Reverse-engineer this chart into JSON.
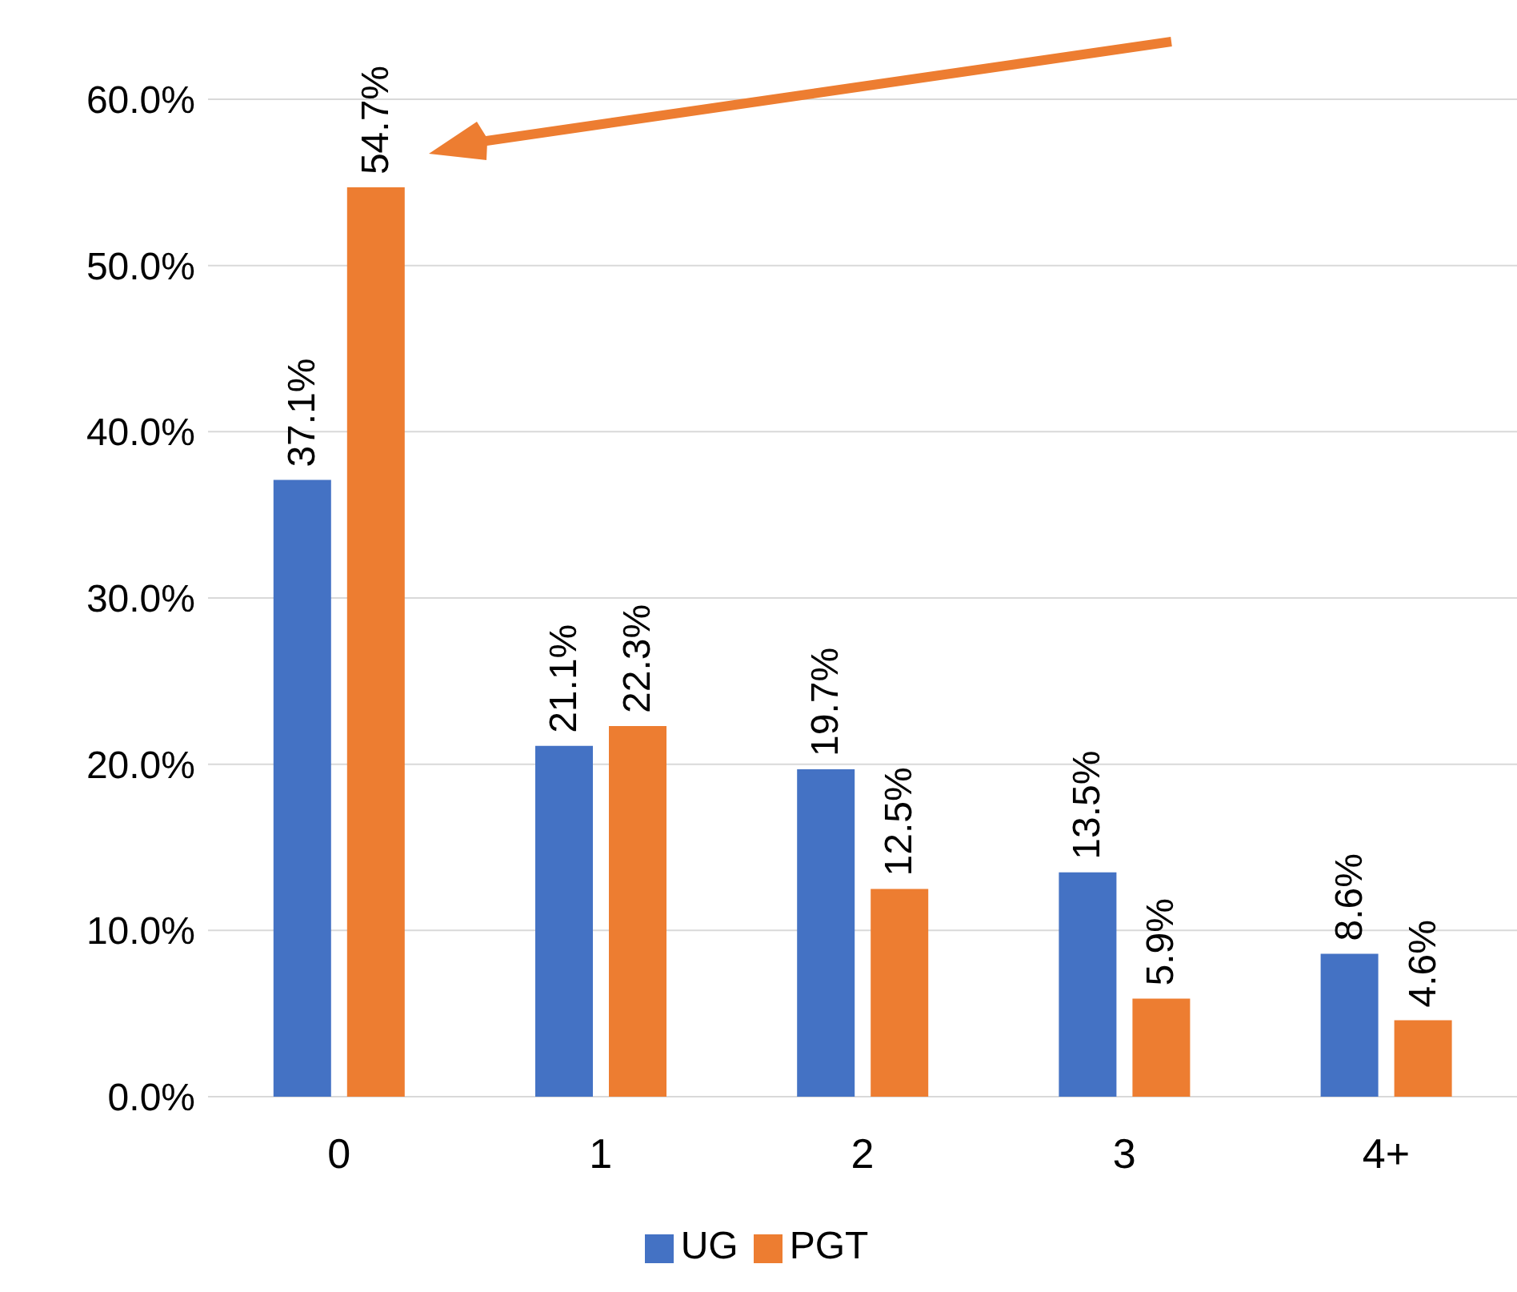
{
  "chart_data": {
    "type": "bar",
    "categories": [
      "0",
      "1",
      "2",
      "3",
      "4+"
    ],
    "series": [
      {
        "name": "UG",
        "color": "#4472c4",
        "values": [
          37.1,
          21.1,
          19.7,
          13.5,
          8.6
        ],
        "value_labels": [
          "37.1%",
          "21.1%",
          "19.7%",
          "13.5%",
          "8.6%"
        ]
      },
      {
        "name": "PGT",
        "color": "#ed7d31",
        "values": [
          54.7,
          22.3,
          12.5,
          5.9,
          4.6
        ],
        "value_labels": [
          "54.7%",
          "22.3%",
          "12.5%",
          "5.9%",
          "4.6%"
        ]
      }
    ],
    "ylim": [
      0,
      60
    ],
    "yticks": [
      {
        "value": 0,
        "label": "0.0%"
      },
      {
        "value": 10,
        "label": "10.0%"
      },
      {
        "value": 20,
        "label": "20.0%"
      },
      {
        "value": 30,
        "label": "30.0%"
      },
      {
        "value": 40,
        "label": "40.0%"
      },
      {
        "value": 50,
        "label": "50.0%"
      },
      {
        "value": 60,
        "label": "60.0%"
      }
    ],
    "grid": "y",
    "legend": "bottom"
  }
}
